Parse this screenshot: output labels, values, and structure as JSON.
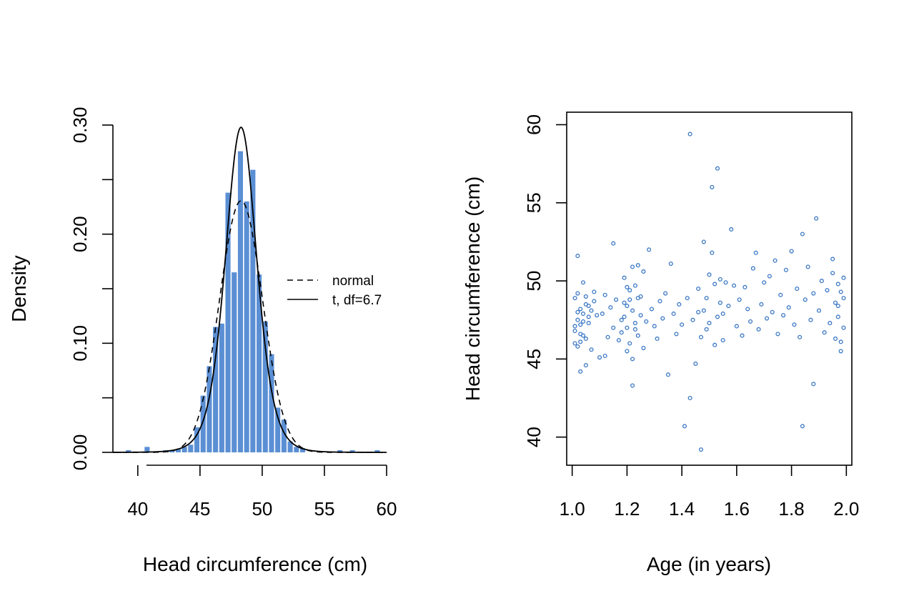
{
  "chart_data": [
    {
      "type": "bar",
      "subtype": "histogram-with-density-curves",
      "xlabel": "Head circumference (cm)",
      "ylabel": "Density",
      "xlim": [
        38,
        60
      ],
      "ylim": [
        0,
        0.3
      ],
      "x_ticks": [
        "40",
        "45",
        "50",
        "55",
        "60"
      ],
      "y_ticks": [
        "0.00",
        "0.10",
        "0.20",
        "0.30"
      ],
      "bar_color": "#5b8fd4",
      "bin_width": 0.5,
      "bins": [
        {
          "x": 39.25,
          "density": 0.002
        },
        {
          "x": 40.75,
          "density": 0.005
        },
        {
          "x": 42.25,
          "density": 0.002
        },
        {
          "x": 42.75,
          "density": 0.002
        },
        {
          "x": 43.25,
          "density": 0.003
        },
        {
          "x": 43.75,
          "density": 0.005
        },
        {
          "x": 44.25,
          "density": 0.007
        },
        {
          "x": 44.75,
          "density": 0.023
        },
        {
          "x": 45.25,
          "density": 0.052
        },
        {
          "x": 45.75,
          "density": 0.079
        },
        {
          "x": 46.25,
          "density": 0.115
        },
        {
          "x": 46.75,
          "density": 0.118
        },
        {
          "x": 47.25,
          "density": 0.238
        },
        {
          "x": 47.75,
          "density": 0.165
        },
        {
          "x": 48.25,
          "density": 0.276
        },
        {
          "x": 48.75,
          "density": 0.23
        },
        {
          "x": 49.25,
          "density": 0.259
        },
        {
          "x": 49.75,
          "density": 0.163
        },
        {
          "x": 50.25,
          "density": 0.12
        },
        {
          "x": 50.75,
          "density": 0.09
        },
        {
          "x": 51.25,
          "density": 0.041
        },
        {
          "x": 51.75,
          "density": 0.03
        },
        {
          "x": 52.25,
          "density": 0.01
        },
        {
          "x": 52.75,
          "density": 0.005
        },
        {
          "x": 53.25,
          "density": 0.004
        },
        {
          "x": 56.25,
          "density": 0.002
        },
        {
          "x": 57.25,
          "density": 0.002
        },
        {
          "x": 59.25,
          "density": 0.002
        }
      ],
      "series": [
        {
          "name": "normal",
          "line_style": "dashed",
          "distribution": "normal",
          "mean": 48.3,
          "sd": 1.73
        },
        {
          "name": "t, df=6.7",
          "line_style": "solid",
          "distribution": "t",
          "location": 48.3,
          "scale": 1.29,
          "df": 6.7
        }
      ],
      "legend": {
        "position": "right",
        "entries": [
          "normal",
          "t, df=6.7"
        ]
      },
      "grid": false
    },
    {
      "type": "scatter",
      "xlabel": "Age (in years)",
      "ylabel": "Head circumference (cm)",
      "xlim": [
        0.98,
        2.02
      ],
      "ylim": [
        38.2,
        60.8
      ],
      "x_ticks": [
        "1.0",
        "1.2",
        "1.4",
        "1.6",
        "1.8",
        "2.0"
      ],
      "y_ticks": [
        "40",
        "45",
        "50",
        "55",
        "60"
      ],
      "marker": "open-circle",
      "point_color": "#3b78c4",
      "grid": false,
      "points": [
        [
          1.02,
          47.5
        ],
        [
          1.03,
          48.2
        ],
        [
          1.01,
          46.8
        ],
        [
          1.04,
          47.9
        ],
        [
          1.02,
          49.2
        ],
        [
          1.05,
          48.5
        ],
        [
          1.03,
          46.1
        ],
        [
          1.06,
          47.7
        ],
        [
          1.01,
          48.9
        ],
        [
          1.04,
          46.5
        ],
        [
          1.07,
          48.1
        ],
        [
          1.02,
          45.8
        ],
        [
          1.05,
          49.0
        ],
        [
          1.03,
          47.2
        ],
        [
          1.08,
          48.7
        ],
        [
          1.01,
          46.0
        ],
        [
          1.06,
          47.3
        ],
        [
          1.02,
          51.6
        ],
        [
          1.04,
          49.9
        ],
        [
          1.03,
          44.2
        ],
        [
          1.05,
          44.6
        ],
        [
          1.07,
          45.6
        ],
        [
          1.02,
          48.0
        ],
        [
          1.09,
          47.8
        ],
        [
          1.01,
          47.1
        ],
        [
          1.06,
          48.4
        ],
        [
          1.03,
          46.6
        ],
        [
          1.08,
          49.3
        ],
        [
          1.04,
          47.4
        ],
        [
          1.05,
          46.3
        ],
        [
          1.1,
          45.1
        ],
        [
          1.12,
          45.2
        ],
        [
          1.11,
          47.9
        ],
        [
          1.13,
          46.4
        ],
        [
          1.14,
          48.3
        ],
        [
          1.15,
          47.0
        ],
        [
          1.12,
          49.1
        ],
        [
          1.16,
          48.8
        ],
        [
          1.15,
          52.4
        ],
        [
          1.17,
          46.2
        ],
        [
          1.18,
          47.5
        ],
        [
          1.19,
          48.6
        ],
        [
          1.2,
          47.0
        ],
        [
          1.21,
          49.4
        ],
        [
          1.22,
          48.1
        ],
        [
          1.18,
          46.7
        ],
        [
          1.2,
          45.5
        ],
        [
          1.22,
          43.3
        ],
        [
          1.23,
          47.3
        ],
        [
          1.24,
          48.9
        ],
        [
          1.19,
          50.2
        ],
        [
          1.21,
          46.0
        ],
        [
          1.23,
          49.7
        ],
        [
          1.25,
          47.8
        ],
        [
          1.2,
          48.4
        ],
        [
          1.22,
          45.0
        ],
        [
          1.24,
          46.5
        ],
        [
          1.26,
          50.6
        ],
        [
          1.19,
          47.7
        ],
        [
          1.21,
          48.8
        ],
        [
          1.23,
          46.9
        ],
        [
          1.25,
          49.0
        ],
        [
          1.27,
          47.4
        ],
        [
          1.28,
          52.0
        ],
        [
          1.24,
          51.0
        ],
        [
          1.26,
          45.7
        ],
        [
          1.22,
          50.9
        ],
        [
          1.2,
          49.6
        ],
        [
          1.29,
          48.2
        ],
        [
          1.3,
          47.1
        ],
        [
          1.31,
          46.3
        ],
        [
          1.32,
          48.7
        ],
        [
          1.33,
          47.6
        ],
        [
          1.34,
          49.2
        ],
        [
          1.35,
          44.0
        ],
        [
          1.36,
          51.1
        ],
        [
          1.37,
          47.9
        ],
        [
          1.38,
          46.6
        ],
        [
          1.39,
          48.5
        ],
        [
          1.4,
          47.2
        ],
        [
          1.41,
          40.7
        ],
        [
          1.42,
          48.9
        ],
        [
          1.43,
          42.5
        ],
        [
          1.43,
          59.4
        ],
        [
          1.44,
          47.5
        ],
        [
          1.45,
          44.7
        ],
        [
          1.46,
          49.5
        ],
        [
          1.47,
          39.2
        ],
        [
          1.48,
          52.5
        ],
        [
          1.48,
          48.1
        ],
        [
          1.49,
          46.9
        ],
        [
          1.5,
          50.4
        ],
        [
          1.51,
          56.0
        ],
        [
          1.51,
          51.8
        ],
        [
          1.52,
          49.8
        ],
        [
          1.53,
          57.2
        ],
        [
          1.53,
          47.7
        ],
        [
          1.54,
          48.6
        ],
        [
          1.55,
          46.2
        ],
        [
          1.56,
          49.9
        ],
        [
          1.5,
          47.3
        ],
        [
          1.49,
          48.9
        ],
        [
          1.52,
          45.9
        ],
        [
          1.54,
          50.1
        ],
        [
          1.46,
          48.0
        ],
        [
          1.47,
          46.4
        ],
        [
          1.55,
          47.9
        ],
        [
          1.57,
          48.4
        ],
        [
          1.58,
          53.3
        ],
        [
          1.59,
          49.7
        ],
        [
          1.6,
          47.1
        ],
        [
          1.61,
          48.8
        ],
        [
          1.62,
          46.5
        ],
        [
          1.63,
          49.6
        ],
        [
          1.64,
          48.2
        ],
        [
          1.65,
          47.4
        ],
        [
          1.66,
          50.8
        ],
        [
          1.67,
          51.8
        ],
        [
          1.68,
          46.9
        ],
        [
          1.69,
          48.5
        ],
        [
          1.7,
          49.9
        ],
        [
          1.71,
          47.6
        ],
        [
          1.72,
          50.3
        ],
        [
          1.73,
          48.0
        ],
        [
          1.74,
          51.3
        ],
        [
          1.75,
          46.6
        ],
        [
          1.76,
          49.1
        ],
        [
          1.77,
          47.8
        ],
        [
          1.78,
          50.7
        ],
        [
          1.79,
          48.3
        ],
        [
          1.8,
          51.9
        ],
        [
          1.81,
          47.2
        ],
        [
          1.82,
          49.5
        ],
        [
          1.83,
          46.4
        ],
        [
          1.84,
          53.0
        ],
        [
          1.84,
          40.7
        ],
        [
          1.85,
          48.8
        ],
        [
          1.86,
          50.9
        ],
        [
          1.87,
          47.5
        ],
        [
          1.88,
          49.2
        ],
        [
          1.88,
          43.4
        ],
        [
          1.89,
          54.0
        ],
        [
          1.9,
          48.1
        ],
        [
          1.91,
          50.0
        ],
        [
          1.92,
          46.7
        ],
        [
          1.93,
          49.4
        ],
        [
          1.94,
          47.3
        ],
        [
          1.95,
          51.4
        ],
        [
          1.96,
          48.6
        ],
        [
          1.97,
          49.8
        ],
        [
          1.98,
          45.5
        ],
        [
          1.99,
          47.0
        ],
        [
          1.98,
          49.3
        ],
        [
          1.99,
          50.2
        ],
        [
          1.97,
          48.4
        ],
        [
          1.96,
          46.3
        ],
        [
          1.95,
          50.5
        ],
        [
          1.99,
          48.9
        ],
        [
          1.98,
          46.1
        ],
        [
          1.97,
          47.7
        ]
      ]
    }
  ]
}
